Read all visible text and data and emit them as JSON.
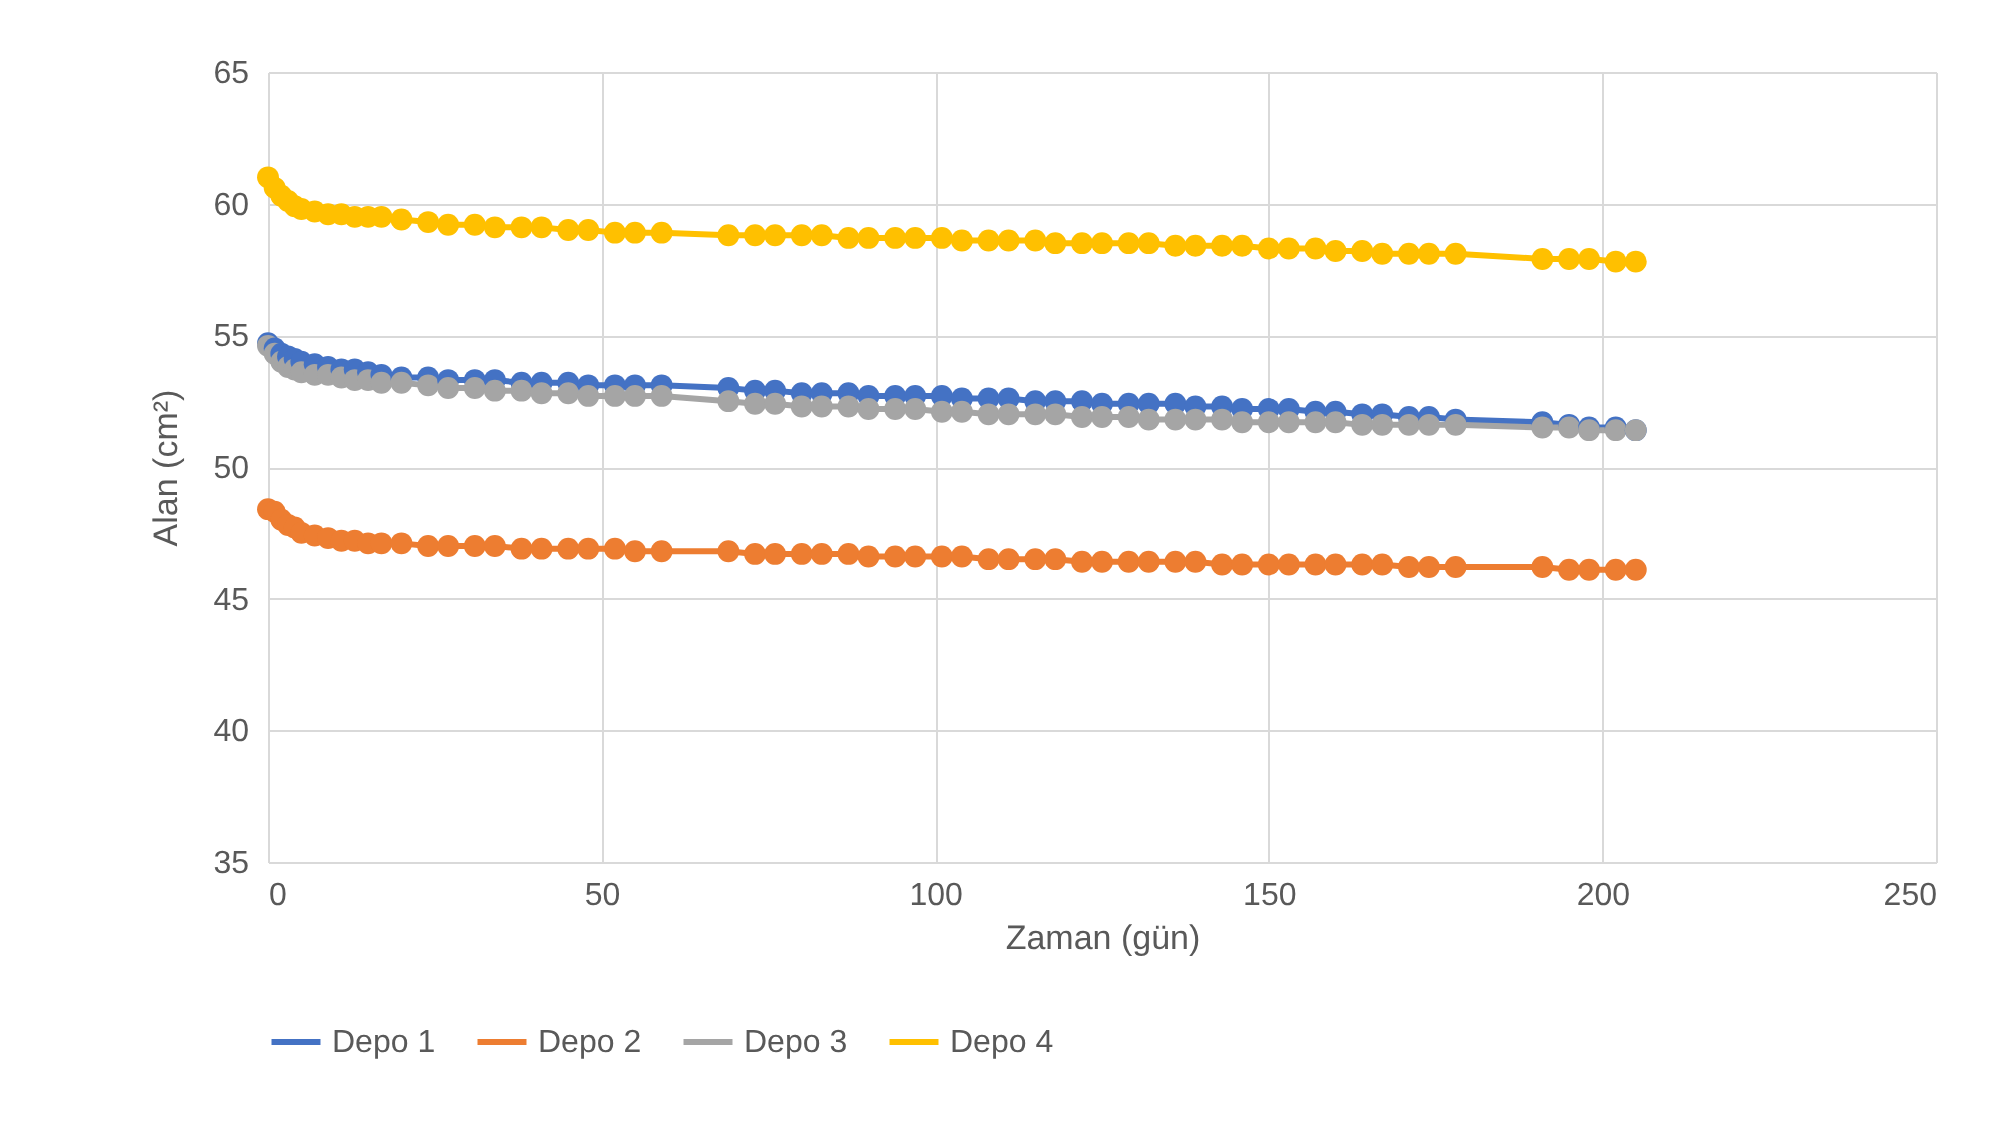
{
  "chart_data": {
    "type": "line",
    "xlabel": "Zaman (gün)",
    "ylabel": "Alan (cm²)",
    "x": [
      0,
      1,
      2,
      3,
      4,
      5,
      7,
      9,
      11,
      13,
      15,
      17,
      20,
      24,
      27,
      31,
      34,
      38,
      41,
      45,
      48,
      52,
      55,
      59,
      69,
      73,
      76,
      80,
      83,
      87,
      90,
      94,
      97,
      101,
      104,
      108,
      111,
      115,
      118,
      122,
      125,
      129,
      132,
      136,
      139,
      143,
      146,
      150,
      153,
      157,
      160,
      164,
      167,
      171,
      174,
      178,
      191,
      195,
      198,
      202,
      205
    ],
    "series": [
      {
        "name": "Depo 1",
        "color": "#4472c4",
        "values": [
          54.7,
          54.5,
          54.3,
          54.2,
          54.1,
          54.0,
          53.9,
          53.8,
          53.7,
          53.7,
          53.6,
          53.5,
          53.4,
          53.4,
          53.3,
          53.3,
          53.3,
          53.2,
          53.2,
          53.2,
          53.1,
          53.1,
          53.1,
          53.1,
          53.0,
          52.9,
          52.9,
          52.8,
          52.8,
          52.8,
          52.7,
          52.7,
          52.7,
          52.7,
          52.6,
          52.6,
          52.6,
          52.5,
          52.5,
          52.5,
          52.4,
          52.4,
          52.4,
          52.4,
          52.3,
          52.3,
          52.2,
          52.2,
          52.2,
          52.1,
          52.1,
          52.0,
          52.0,
          51.9,
          51.9,
          51.8,
          51.7,
          51.6,
          51.5,
          51.5,
          51.4
        ]
      },
      {
        "name": "Depo 2",
        "color": "#ed7d31",
        "values": [
          48.4,
          48.3,
          48.0,
          47.8,
          47.7,
          47.5,
          47.4,
          47.3,
          47.2,
          47.2,
          47.1,
          47.1,
          47.1,
          47.0,
          47.0,
          47.0,
          47.0,
          46.9,
          46.9,
          46.9,
          46.9,
          46.9,
          46.8,
          46.8,
          46.8,
          46.7,
          46.7,
          46.7,
          46.7,
          46.7,
          46.6,
          46.6,
          46.6,
          46.6,
          46.6,
          46.5,
          46.5,
          46.5,
          46.5,
          46.4,
          46.4,
          46.4,
          46.4,
          46.4,
          46.4,
          46.3,
          46.3,
          46.3,
          46.3,
          46.3,
          46.3,
          46.3,
          46.3,
          46.2,
          46.2,
          46.2,
          46.2,
          46.1,
          46.1,
          46.1,
          46.1
        ]
      },
      {
        "name": "Depo 3",
        "color": "#a5a5a5",
        "values": [
          54.6,
          54.3,
          54.0,
          53.8,
          53.7,
          53.6,
          53.5,
          53.5,
          53.4,
          53.3,
          53.3,
          53.2,
          53.2,
          53.1,
          53.0,
          53.0,
          52.9,
          52.9,
          52.8,
          52.8,
          52.7,
          52.7,
          52.7,
          52.7,
          52.5,
          52.4,
          52.4,
          52.3,
          52.3,
          52.3,
          52.2,
          52.2,
          52.2,
          52.1,
          52.1,
          52.0,
          52.0,
          52.0,
          52.0,
          51.9,
          51.9,
          51.9,
          51.8,
          51.8,
          51.8,
          51.8,
          51.7,
          51.7,
          51.7,
          51.7,
          51.7,
          51.6,
          51.6,
          51.6,
          51.6,
          51.6,
          51.5,
          51.5,
          51.4,
          51.4,
          51.4
        ]
      },
      {
        "name": "Depo 4",
        "color": "#ffc000",
        "values": [
          61.0,
          60.6,
          60.3,
          60.1,
          59.9,
          59.8,
          59.7,
          59.6,
          59.6,
          59.5,
          59.5,
          59.5,
          59.4,
          59.3,
          59.2,
          59.2,
          59.1,
          59.1,
          59.1,
          59.0,
          59.0,
          58.9,
          58.9,
          58.9,
          58.8,
          58.8,
          58.8,
          58.8,
          58.8,
          58.7,
          58.7,
          58.7,
          58.7,
          58.7,
          58.6,
          58.6,
          58.6,
          58.6,
          58.5,
          58.5,
          58.5,
          58.5,
          58.5,
          58.4,
          58.4,
          58.4,
          58.4,
          58.3,
          58.3,
          58.3,
          58.2,
          58.2,
          58.1,
          58.1,
          58.1,
          58.1,
          57.9,
          57.9,
          57.9,
          57.8,
          57.8
        ]
      }
    ],
    "xlim": [
      0,
      250
    ],
    "xticks": [
      0,
      50,
      100,
      150,
      200,
      250
    ],
    "ylim": [
      35,
      65
    ],
    "yticks": [
      35,
      40,
      45,
      50,
      55,
      60,
      65
    ],
    "grid": true,
    "legend": "bottom",
    "marker": "circle",
    "line_style": "solid"
  }
}
